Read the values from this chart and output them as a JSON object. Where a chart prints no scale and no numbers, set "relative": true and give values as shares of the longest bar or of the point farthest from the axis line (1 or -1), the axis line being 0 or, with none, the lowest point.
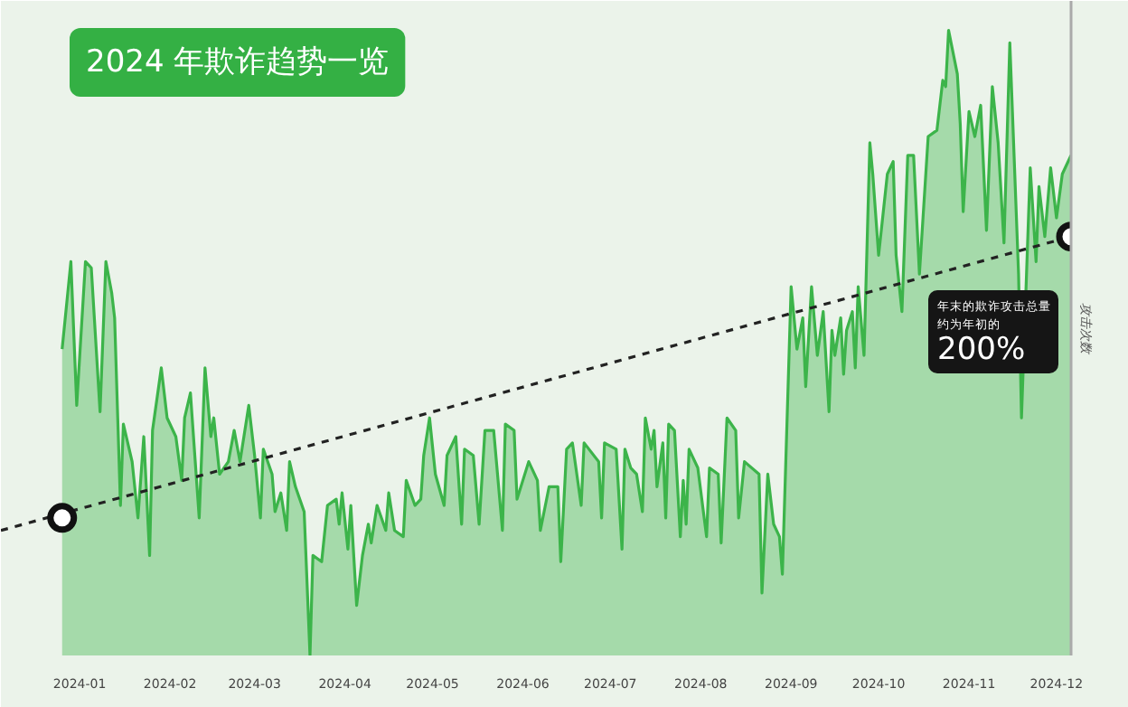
{
  "chart_data": {
    "type": "area",
    "title": "2024 年欺诈趋势一览",
    "ylabel": "攻击次数",
    "relative": true,
    "grid": false,
    "xlim": [
      "2023-12-05",
      "2024-12-06"
    ],
    "xticks": [
      {
        "value": "2024-01-01",
        "label": "2024-01"
      },
      {
        "value": "2024-02-01",
        "label": "2024-02"
      },
      {
        "value": "2024-03-01",
        "label": "2024-03"
      },
      {
        "value": "2024-04-01",
        "label": "2024-04"
      },
      {
        "value": "2024-05-01",
        "label": "2024-05"
      },
      {
        "value": "2024-06-01",
        "label": "2024-06"
      },
      {
        "value": "2024-07-01",
        "label": "2024-07"
      },
      {
        "value": "2024-08-01",
        "label": "2024-08"
      },
      {
        "value": "2024-09-01",
        "label": "2024-09"
      },
      {
        "value": "2024-10-01",
        "label": "2024-10"
      },
      {
        "value": "2024-11-01",
        "label": "2024-11"
      },
      {
        "value": "2024-12-01",
        "label": "2024-12"
      }
    ],
    "annotations": [
      "年末的欺诈攻击总量约为年初的",
      "200%"
    ],
    "series": [
      {
        "type": "area",
        "color": "#3cb44a",
        "x": [
          "2023-12-26",
          "2023-12-29",
          "2023-12-31",
          "2024-01-03",
          "2024-01-05",
          "2024-01-08",
          "2024-01-10",
          "2024-01-12",
          "2024-01-13",
          "2024-01-15",
          "2024-01-16",
          "2024-01-19",
          "2024-01-21",
          "2024-01-23",
          "2024-01-25",
          "2024-01-26",
          "2024-01-29",
          "2024-01-31",
          "2024-02-03",
          "2024-02-05",
          "2024-02-06",
          "2024-02-08",
          "2024-02-11",
          "2024-02-13",
          "2024-02-15",
          "2024-02-16",
          "2024-02-18",
          "2024-02-21",
          "2024-02-23",
          "2024-02-25",
          "2024-02-28",
          "2024-03-01",
          "2024-03-03",
          "2024-03-04",
          "2024-03-07",
          "2024-03-08",
          "2024-03-10",
          "2024-03-12",
          "2024-03-13",
          "2024-03-15",
          "2024-03-18",
          "2024-03-20",
          "2024-03-21",
          "2024-03-24",
          "2024-03-26",
          "2024-03-29",
          "2024-03-30",
          "2024-03-31",
          "2024-04-02",
          "2024-04-03",
          "2024-04-05",
          "2024-04-07",
          "2024-04-09",
          "2024-04-10",
          "2024-04-12",
          "2024-04-15",
          "2024-04-16",
          "2024-04-18",
          "2024-04-21",
          "2024-04-22",
          "2024-04-25",
          "2024-04-27",
          "2024-04-28",
          "2024-04-30",
          "2024-05-02",
          "2024-05-05",
          "2024-05-06",
          "2024-05-09",
          "2024-05-11",
          "2024-05-12",
          "2024-05-15",
          "2024-05-17",
          "2024-05-19",
          "2024-05-22",
          "2024-05-25",
          "2024-05-26",
          "2024-05-29",
          "2024-05-30",
          "2024-06-03",
          "2024-06-06",
          "2024-06-07",
          "2024-06-10",
          "2024-06-13",
          "2024-06-14",
          "2024-06-16",
          "2024-06-18",
          "2024-06-21",
          "2024-06-22",
          "2024-06-27",
          "2024-06-28",
          "2024-06-29",
          "2024-07-03",
          "2024-07-05",
          "2024-07-06",
          "2024-07-08",
          "2024-07-10",
          "2024-07-12",
          "2024-07-13",
          "2024-07-15",
          "2024-07-16",
          "2024-07-17",
          "2024-07-19",
          "2024-07-20",
          "2024-07-21",
          "2024-07-23",
          "2024-07-25",
          "2024-07-26",
          "2024-07-27",
          "2024-07-28",
          "2024-07-31",
          "2024-08-03",
          "2024-08-04",
          "2024-08-07",
          "2024-08-08",
          "2024-08-10",
          "2024-08-13",
          "2024-08-14",
          "2024-08-16",
          "2024-08-21",
          "2024-08-22",
          "2024-08-24",
          "2024-08-26",
          "2024-08-28",
          "2024-08-29",
          "2024-09-01",
          "2024-09-03",
          "2024-09-05",
          "2024-09-06",
          "2024-09-08",
          "2024-09-10",
          "2024-09-12",
          "2024-09-14",
          "2024-09-15",
          "2024-09-16",
          "2024-09-18",
          "2024-09-19",
          "2024-09-20",
          "2024-09-22",
          "2024-09-23",
          "2024-09-24",
          "2024-09-26",
          "2024-09-28",
          "2024-09-29",
          "2024-10-01",
          "2024-10-04",
          "2024-10-06",
          "2024-10-07",
          "2024-10-09",
          "2024-10-11",
          "2024-10-13",
          "2024-10-15",
          "2024-10-18",
          "2024-10-21",
          "2024-10-23",
          "2024-10-24",
          "2024-10-25",
          "2024-10-28",
          "2024-10-29",
          "2024-10-30",
          "2024-11-01",
          "2024-11-03",
          "2024-11-05",
          "2024-11-07",
          "2024-11-09",
          "2024-11-11",
          "2024-11-13",
          "2024-11-15",
          "2024-11-18",
          "2024-11-19",
          "2024-11-22",
          "2024-11-24",
          "2024-11-25",
          "2024-11-27",
          "2024-11-29",
          "2024-12-01",
          "2024-12-03",
          "2024-12-06"
        ],
        "values": [
          0.49,
          0.63,
          0.4,
          0.63,
          0.62,
          0.39,
          0.63,
          0.58,
          0.54,
          0.24,
          0.37,
          0.31,
          0.22,
          0.35,
          0.16,
          0.36,
          0.46,
          0.38,
          0.35,
          0.28,
          0.38,
          0.42,
          0.22,
          0.46,
          0.35,
          0.38,
          0.29,
          0.31,
          0.36,
          0.31,
          0.4,
          0.32,
          0.22,
          0.33,
          0.29,
          0.23,
          0.26,
          0.2,
          0.31,
          0.27,
          0.23,
          0.0,
          0.16,
          0.15,
          0.24,
          0.25,
          0.21,
          0.26,
          0.17,
          0.24,
          0.08,
          0.16,
          0.21,
          0.18,
          0.24,
          0.2,
          0.26,
          0.2,
          0.19,
          0.28,
          0.24,
          0.25,
          0.32,
          0.38,
          0.29,
          0.24,
          0.32,
          0.35,
          0.21,
          0.33,
          0.32,
          0.21,
          0.36,
          0.36,
          0.2,
          0.37,
          0.36,
          0.25,
          0.31,
          0.28,
          0.2,
          0.27,
          0.27,
          0.15,
          0.33,
          0.34,
          0.24,
          0.34,
          0.31,
          0.22,
          0.34,
          0.33,
          0.17,
          0.33,
          0.3,
          0.29,
          0.23,
          0.38,
          0.33,
          0.36,
          0.27,
          0.34,
          0.22,
          0.37,
          0.36,
          0.19,
          0.28,
          0.21,
          0.33,
          0.3,
          0.19,
          0.3,
          0.29,
          0.18,
          0.38,
          0.36,
          0.22,
          0.31,
          0.29,
          0.1,
          0.29,
          0.21,
          0.19,
          0.13,
          0.59,
          0.49,
          0.54,
          0.43,
          0.59,
          0.48,
          0.55,
          0.39,
          0.52,
          0.48,
          0.54,
          0.45,
          0.52,
          0.55,
          0.46,
          0.59,
          0.48,
          0.82,
          0.77,
          0.64,
          0.77,
          0.79,
          0.64,
          0.55,
          0.8,
          0.8,
          0.61,
          0.83,
          0.84,
          0.92,
          0.91,
          1.0,
          0.93,
          0.85,
          0.71,
          0.87,
          0.83,
          0.88,
          0.68,
          0.91,
          0.82,
          0.66,
          0.98,
          0.61,
          0.38,
          0.78,
          0.63,
          0.75,
          0.67,
          0.78,
          0.7,
          0.77,
          0.8
        ]
      },
      {
        "type": "line",
        "color": "#222222",
        "line_style": "dashed",
        "x": [
          "2023-12-05",
          "2024-12-06"
        ],
        "values": [
          0.2,
          0.67
        ]
      },
      {
        "type": "scatter",
        "marker": "circle",
        "color": "#111111",
        "x": [
          "2023-12-26",
          "2024-12-06"
        ],
        "values": [
          0.22,
          0.67
        ]
      }
    ]
  }
}
